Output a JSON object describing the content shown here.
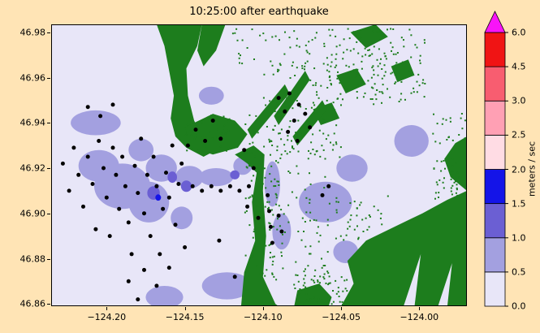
{
  "figure": {
    "background_color": "#ffe4b5"
  },
  "chart_data": {
    "type": "heatmap",
    "title": "10:25:00 after earthquake",
    "xlabel": "",
    "ylabel": "",
    "xlim": [
      -124.2355,
      -123.9695
    ],
    "ylim": [
      46.859,
      46.9835
    ],
    "grid": false,
    "x_ticks": [
      -124.2,
      -124.15,
      -124.1,
      -124.05,
      -124.0
    ],
    "x_tick_labels": [
      "−124.20",
      "−124.15",
      "−124.10",
      "−124.05",
      "−124.00"
    ],
    "y_ticks": [
      46.86,
      46.88,
      46.9,
      46.92,
      46.94,
      46.96,
      46.98
    ],
    "y_tick_labels": [
      "46.86",
      "46.88",
      "46.90",
      "46.92",
      "46.94",
      "46.96",
      "46.98"
    ],
    "colorbar": {
      "label": "meters / sec",
      "boundaries": [
        0.0,
        0.5,
        1.0,
        1.5,
        2.0,
        2.5,
        3.0,
        4.5,
        6.0
      ],
      "tick_labels": [
        "0.0",
        "0.5",
        "1.0",
        "1.5",
        "2.0",
        "2.5",
        "3.0",
        "4.5",
        "6.0"
      ],
      "colors": [
        "#e8e6f8",
        "#a3a0e0",
        "#6b5fd3",
        "#1414e8",
        "#ffdce4",
        "#ffa0b4",
        "#f85d70",
        "#f01414"
      ],
      "over_color": "#f814f8",
      "extend": "max"
    },
    "map": {
      "water_color": "#e8e6f8",
      "land_color": "#1d7d1d",
      "land_polygons": [
        [
          [
            -124.168,
            46.9835
          ],
          [
            -124.139,
            46.9835
          ],
          [
            -124.142,
            46.974
          ],
          [
            -124.149,
            46.964
          ],
          [
            -124.148,
            46.952
          ],
          [
            -124.144,
            46.941
          ],
          [
            -124.138,
            46.933
          ],
          [
            -124.13,
            46.928
          ],
          [
            -124.138,
            46.925
          ],
          [
            -124.149,
            46.929
          ],
          [
            -124.156,
            46.934
          ],
          [
            -124.159,
            46.942
          ],
          [
            -124.157,
            46.952
          ],
          [
            -124.16,
            46.963
          ],
          [
            -124.163,
            46.974
          ]
        ],
        [
          [
            -124.139,
            46.9835
          ],
          [
            -124.124,
            46.9835
          ],
          [
            -124.13,
            46.972
          ],
          [
            -124.138,
            46.965
          ],
          [
            -124.142,
            46.972
          ]
        ],
        [
          [
            -124.15,
            46.938
          ],
          [
            -124.132,
            46.944
          ],
          [
            -124.118,
            46.941
          ],
          [
            -124.11,
            46.935
          ],
          [
            -124.116,
            46.929
          ],
          [
            -124.132,
            46.926
          ],
          [
            -124.146,
            46.929
          ]
        ],
        [
          [
            -124.11,
            46.937
          ],
          [
            -124.086,
            46.957
          ],
          [
            -124.083,
            46.953
          ],
          [
            -124.107,
            46.933
          ]
        ],
        [
          [
            -124.118,
            46.926
          ],
          [
            -124.106,
            46.93
          ],
          [
            -124.099,
            46.926
          ],
          [
            -124.1,
            46.91
          ],
          [
            -124.098,
            46.89
          ],
          [
            -124.1,
            46.872
          ],
          [
            -124.092,
            46.86
          ],
          [
            -124.09,
            46.859
          ],
          [
            -124.114,
            46.859
          ],
          [
            -124.112,
            46.874
          ],
          [
            -124.105,
            46.888
          ],
          [
            -124.107,
            46.905
          ],
          [
            -124.104,
            46.918
          ],
          [
            -124.11,
            46.922
          ]
        ],
        [
          [
            -124.05,
            46.859
          ],
          [
            -124.042,
            46.869
          ],
          [
            -124.046,
            46.879
          ],
          [
            -124.034,
            46.888
          ],
          [
            -124.016,
            46.894
          ],
          [
            -123.998,
            46.9
          ],
          [
            -123.982,
            46.906
          ],
          [
            -123.9695,
            46.91
          ],
          [
            -123.9695,
            46.859
          ]
        ],
        [
          [
            -123.9695,
            46.91
          ],
          [
            -123.98,
            46.916
          ],
          [
            -123.984,
            46.924
          ],
          [
            -123.977,
            46.931
          ],
          [
            -123.9695,
            46.934
          ]
        ],
        [
          [
            -124.08,
            46.859
          ],
          [
            -124.078,
            46.866
          ],
          [
            -124.064,
            46.869
          ],
          [
            -124.056,
            46.863
          ],
          [
            -124.058,
            46.859
          ]
        ],
        [
          [
            -124.044,
            46.98
          ],
          [
            -124.028,
            46.9835
          ],
          [
            -124.02,
            46.978
          ],
          [
            -124.034,
            46.973
          ]
        ],
        [
          [
            -124.053,
            46.961
          ],
          [
            -124.04,
            46.964
          ],
          [
            -124.034,
            46.957
          ],
          [
            -124.047,
            46.953
          ]
        ],
        [
          [
            -124.018,
            46.965
          ],
          [
            -124.007,
            46.968
          ],
          [
            -124.003,
            46.961
          ],
          [
            -124.014,
            46.958
          ]
        ],
        [
          [
            -124.068,
            46.946
          ],
          [
            -124.056,
            46.949
          ],
          [
            -124.051,
            46.942
          ],
          [
            -124.063,
            46.939
          ]
        ],
        [
          [
            -124.093,
            46.943
          ],
          [
            -124.073,
            46.963
          ],
          [
            -124.07,
            46.959
          ],
          [
            -124.09,
            46.939
          ]
        ],
        [
          [
            -124.081,
            46.934
          ],
          [
            -124.062,
            46.95
          ],
          [
            -124.059,
            46.946
          ],
          [
            -124.078,
            46.93
          ]
        ]
      ],
      "water_overlays": [
        [
          [
            -124.01,
            46.859
          ],
          [
            -123.999,
            46.882
          ],
          [
            -124.003,
            46.859
          ]
        ],
        [
          [
            -123.988,
            46.859
          ],
          [
            -123.979,
            46.878
          ],
          [
            -123.982,
            46.859
          ]
        ]
      ],
      "speckle_regions": [
        {
          "x0": -124.062,
          "x1": -123.995,
          "y0": 46.948,
          "y1": 46.982,
          "n": 150
        },
        {
          "x0": -124.1,
          "x1": -124.05,
          "y0": 46.925,
          "y1": 46.968,
          "n": 100
        },
        {
          "x0": -124.096,
          "x1": -124.058,
          "y0": 46.868,
          "y1": 46.928,
          "n": 80
        },
        {
          "x0": -124.112,
          "x1": -124.088,
          "y0": 46.872,
          "y1": 46.945,
          "n": 100
        },
        {
          "x0": -123.992,
          "x1": -123.97,
          "y0": 46.905,
          "y1": 46.945,
          "n": 60
        },
        {
          "x0": -124.15,
          "x1": -124.118,
          "y0": 46.928,
          "y1": 46.944,
          "n": 40
        },
        {
          "x0": -124.058,
          "x1": -124.02,
          "y0": 46.888,
          "y1": 46.908,
          "n": 40
        },
        {
          "x0": -124.08,
          "x1": -124.045,
          "y0": 46.859,
          "y1": 46.875,
          "n": 60
        },
        {
          "x0": -124.12,
          "x1": -124.052,
          "y0": 46.964,
          "y1": 46.982,
          "n": 50
        }
      ],
      "speed_patches": [
        {
          "cx": -124.207,
          "cy": 46.94,
          "rx": 0.016,
          "ry": 0.0055,
          "lv": 1
        },
        {
          "cx": -124.205,
          "cy": 46.921,
          "rx": 0.013,
          "ry": 0.007,
          "lv": 1
        },
        {
          "cx": -124.19,
          "cy": 46.912,
          "rx": 0.018,
          "ry": 0.01,
          "lv": 1
        },
        {
          "cx": -124.173,
          "cy": 46.905,
          "rx": 0.013,
          "ry": 0.009,
          "lv": 1
        },
        {
          "cx": -124.165,
          "cy": 46.92,
          "rx": 0.01,
          "ry": 0.006,
          "lv": 1
        },
        {
          "cx": -124.178,
          "cy": 46.928,
          "rx": 0.008,
          "ry": 0.005,
          "lv": 1
        },
        {
          "cx": -124.147,
          "cy": 46.916,
          "rx": 0.009,
          "ry": 0.005,
          "lv": 1
        },
        {
          "cx": -124.13,
          "cy": 46.916,
          "rx": 0.011,
          "ry": 0.004,
          "lv": 1
        },
        {
          "cx": -124.125,
          "cy": 46.935,
          "rx": 0.007,
          "ry": 0.005,
          "lv": 1
        },
        {
          "cx": -124.113,
          "cy": 46.921,
          "rx": 0.006,
          "ry": 0.004,
          "lv": 1
        },
        {
          "cx": -124.094,
          "cy": 46.913,
          "rx": 0.005,
          "ry": 0.01,
          "lv": 1
        },
        {
          "cx": -124.088,
          "cy": 46.892,
          "rx": 0.006,
          "ry": 0.008,
          "lv": 1
        },
        {
          "cx": -124.06,
          "cy": 46.905,
          "rx": 0.017,
          "ry": 0.009,
          "lv": 1
        },
        {
          "cx": -124.043,
          "cy": 46.92,
          "rx": 0.01,
          "ry": 0.006,
          "lv": 1
        },
        {
          "cx": -124.005,
          "cy": 46.932,
          "rx": 0.011,
          "ry": 0.007,
          "lv": 1
        },
        {
          "cx": -124.047,
          "cy": 46.883,
          "rx": 0.008,
          "ry": 0.005,
          "lv": 1
        },
        {
          "cx": -124.123,
          "cy": 46.868,
          "rx": 0.016,
          "ry": 0.006,
          "lv": 1
        },
        {
          "cx": -124.163,
          "cy": 46.863,
          "rx": 0.012,
          "ry": 0.005,
          "lv": 1
        },
        {
          "cx": -124.133,
          "cy": 46.952,
          "rx": 0.008,
          "ry": 0.004,
          "lv": 1
        },
        {
          "cx": -124.152,
          "cy": 46.898,
          "rx": 0.007,
          "ry": 0.005,
          "lv": 1
        },
        {
          "cx": -124.17,
          "cy": 46.909,
          "rx": 0.004,
          "ry": 0.003,
          "lv": 2
        },
        {
          "cx": -124.158,
          "cy": 46.916,
          "rx": 0.003,
          "ry": 0.0025,
          "lv": 2
        },
        {
          "cx": -124.149,
          "cy": 46.912,
          "rx": 0.0035,
          "ry": 0.0025,
          "lv": 2
        },
        {
          "cx": -124.118,
          "cy": 46.917,
          "rx": 0.003,
          "ry": 0.002,
          "lv": 2
        },
        {
          "cx": -124.167,
          "cy": 46.907,
          "rx": 0.0018,
          "ry": 0.0014,
          "lv": 3
        }
      ]
    },
    "gauges": {
      "marker": "dot",
      "color": "#000000",
      "points": [
        [
          -124.212,
          46.947
        ],
        [
          -124.204,
          46.943
        ],
        [
          -124.196,
          46.948
        ],
        [
          -124.228,
          46.922
        ],
        [
          -124.224,
          46.91
        ],
        [
          -124.221,
          46.929
        ],
        [
          -124.218,
          46.917
        ],
        [
          -124.215,
          46.903
        ],
        [
          -124.212,
          46.925
        ],
        [
          -124.209,
          46.913
        ],
        [
          -124.207,
          46.893
        ],
        [
          -124.205,
          46.932
        ],
        [
          -124.202,
          46.92
        ],
        [
          -124.2,
          46.907
        ],
        [
          -124.198,
          46.89
        ],
        [
          -124.196,
          46.929
        ],
        [
          -124.194,
          46.917
        ],
        [
          -124.192,
          46.902
        ],
        [
          -124.19,
          46.925
        ],
        [
          -124.188,
          46.912
        ],
        [
          -124.186,
          46.896
        ],
        [
          -124.184,
          46.882
        ],
        [
          -124.182,
          46.921
        ],
        [
          -124.18,
          46.909
        ],
        [
          -124.178,
          46.933
        ],
        [
          -124.176,
          46.9
        ],
        [
          -124.174,
          46.917
        ],
        [
          -124.172,
          46.89
        ],
        [
          -124.17,
          46.925
        ],
        [
          -124.168,
          46.912
        ],
        [
          -124.166,
          46.882
        ],
        [
          -124.164,
          46.902
        ],
        [
          -124.162,
          46.918
        ],
        [
          -124.16,
          46.907
        ],
        [
          -124.158,
          46.93
        ],
        [
          -124.156,
          46.895
        ],
        [
          -124.154,
          46.913
        ],
        [
          -124.152,
          46.922
        ],
        [
          -124.176,
          46.875
        ],
        [
          -124.186,
          46.87
        ],
        [
          -124.168,
          46.868
        ],
        [
          -124.18,
          46.862
        ],
        [
          -124.16,
          46.876
        ],
        [
          -124.15,
          46.885
        ],
        [
          -124.148,
          46.93
        ],
        [
          -124.143,
          46.937
        ],
        [
          -124.137,
          46.932
        ],
        [
          -124.132,
          46.941
        ],
        [
          -124.127,
          46.933
        ],
        [
          -124.145,
          46.912
        ],
        [
          -124.139,
          46.91
        ],
        [
          -124.133,
          46.912
        ],
        [
          -124.127,
          46.91
        ],
        [
          -124.121,
          46.912
        ],
        [
          -124.115,
          46.91
        ],
        [
          -124.109,
          46.912
        ],
        [
          -124.112,
          46.928
        ],
        [
          -124.106,
          46.92
        ],
        [
          -124.11,
          46.903
        ],
        [
          -124.103,
          46.898
        ],
        [
          -124.097,
          46.908
        ],
        [
          -124.096,
          46.901
        ],
        [
          -124.095,
          46.894
        ],
        [
          -124.094,
          46.887
        ],
        [
          -124.09,
          46.899
        ],
        [
          -124.088,
          46.892
        ],
        [
          -124.09,
          46.951
        ],
        [
          -124.086,
          46.945
        ],
        [
          -124.083,
          46.953
        ],
        [
          -124.08,
          46.941
        ],
        [
          -124.077,
          46.948
        ],
        [
          -124.073,
          46.944
        ],
        [
          -124.084,
          46.936
        ],
        [
          -124.078,
          46.932
        ],
        [
          -124.07,
          46.938
        ],
        [
          -124.062,
          46.908
        ],
        [
          -124.058,
          46.912
        ],
        [
          -124.118,
          46.872
        ],
        [
          -124.128,
          46.888
        ]
      ]
    }
  }
}
